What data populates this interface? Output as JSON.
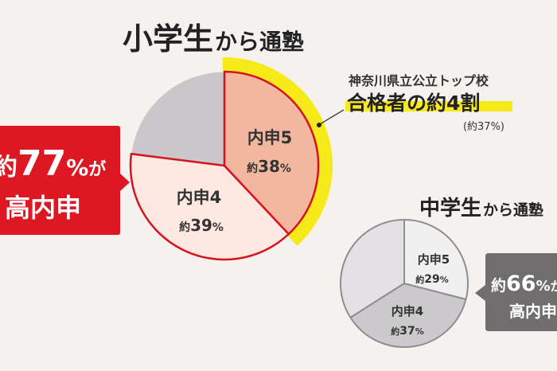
{
  "chart_data": [
    {
      "type": "pie",
      "title_main": "小学生",
      "title_sub": "から通塾",
      "slices": [
        {
          "label": "内申5",
          "value_prefix": "約",
          "value": 38,
          "unit": "%"
        },
        {
          "label": "内申4",
          "value_prefix": "約",
          "value": 39,
          "unit": "%"
        },
        {
          "label": "",
          "value": 23
        }
      ],
      "callout_left": {
        "line1_prefix": "約",
        "line1_value": "77",
        "line1_unit": "%",
        "line1_suffix": "が",
        "line2": "高内申"
      },
      "callout_right": {
        "line1": "神奈川県立公立トップ校",
        "line2": "合格者の約4割",
        "line3": "(約37%)"
      },
      "colors": {
        "slice1": "#f3b7a0",
        "slice2": "#fde8e2",
        "slice3": "#c9c7c9",
        "outline": "#d6121d",
        "highlight": "#f6ea1b",
        "callout": "#dd1822"
      }
    },
    {
      "type": "pie",
      "title_main": "中学生",
      "title_sub": "から通塾",
      "slices": [
        {
          "label": "内申5",
          "value_prefix": "約",
          "value": 29,
          "unit": "%"
        },
        {
          "label": "内申4",
          "value_prefix": "約",
          "value": 37,
          "unit": "%"
        },
        {
          "label": "",
          "value": 34
        }
      ],
      "callout_right": {
        "line1_prefix": "約",
        "line1_value": "66",
        "line1_unit": "%",
        "line1_suffix": "が",
        "line2": "高内申"
      },
      "colors": {
        "slice1": "#f1f0f1",
        "slice2": "#cbc9cb",
        "slice3": "#e3e1e3",
        "outline": "#8f8d8f",
        "callout": "#6f6d6e"
      }
    }
  ]
}
